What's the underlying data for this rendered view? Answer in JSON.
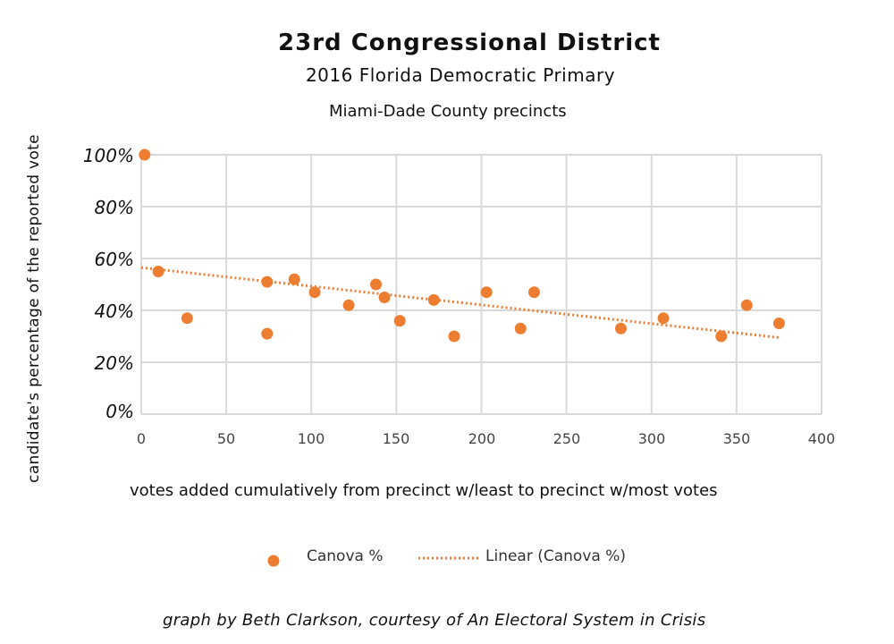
{
  "chart_data": {
    "type": "scatter",
    "title": "23rd Congressional District",
    "subtitle": "2016 Florida Democratic Primary",
    "subtitle2": "Miami-Dade County precincts",
    "xlabel": "votes added cumulatively from precinct w/least to precinct w/most votes",
    "ylabel": "candidate's percentage of the reported vote",
    "xlim": [
      0,
      400
    ],
    "ylim": [
      0,
      100
    ],
    "x_ticks": [
      "0",
      "50",
      "100",
      "150",
      "200",
      "250",
      "300",
      "350",
      "400"
    ],
    "y_ticks": [
      "0%",
      "20%",
      "40%",
      "60%",
      "80%",
      "100%"
    ],
    "grid": true,
    "series": [
      {
        "name": "Canova %",
        "color": "#ED7D31",
        "x": [
          2,
          10,
          27,
          74,
          74,
          90,
          102,
          122,
          138,
          143,
          152,
          172,
          184,
          203,
          223,
          231,
          282,
          307,
          341,
          356,
          375
        ],
        "y": [
          100,
          55,
          37,
          51,
          31,
          52,
          47,
          42,
          50,
          45,
          36,
          44,
          30,
          47,
          33,
          47,
          33,
          37,
          30,
          42,
          35
        ]
      }
    ],
    "trendline": {
      "name": "Linear (Canova %)",
      "type": "linear",
      "x": [
        0,
        375
      ],
      "y": [
        56.5,
        29.5
      ]
    },
    "legend": [
      "Canova %",
      "Linear (Canova %)"
    ],
    "legend_position": "bottom"
  },
  "credit": "graph by Beth Clarkson, courtesy of An Electoral System in Crisis"
}
